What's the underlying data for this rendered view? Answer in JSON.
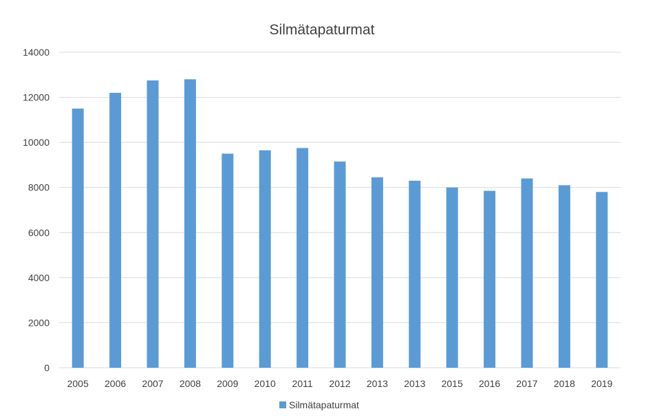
{
  "chart_data": {
    "type": "bar",
    "title": "Silmätapaturmat",
    "xlabel": "",
    "ylabel": "",
    "categories": [
      "2005",
      "2006",
      "2007",
      "2008",
      "2009",
      "2010",
      "2011",
      "2012",
      "2013",
      "2013",
      "2015",
      "2016",
      "2017",
      "2018",
      "2019"
    ],
    "series": [
      {
        "name": "Silmätapaturmat",
        "color": "#5b9bd5",
        "values": [
          11500,
          12200,
          12750,
          12800,
          9500,
          9650,
          9750,
          9150,
          8450,
          8300,
          8000,
          7850,
          8400,
          8100,
          7800
        ]
      }
    ],
    "ylim": [
      0,
      14000
    ],
    "yticks": [
      0,
      2000,
      4000,
      6000,
      8000,
      10000,
      12000,
      14000
    ],
    "grid": true,
    "legend_position": "bottom"
  }
}
